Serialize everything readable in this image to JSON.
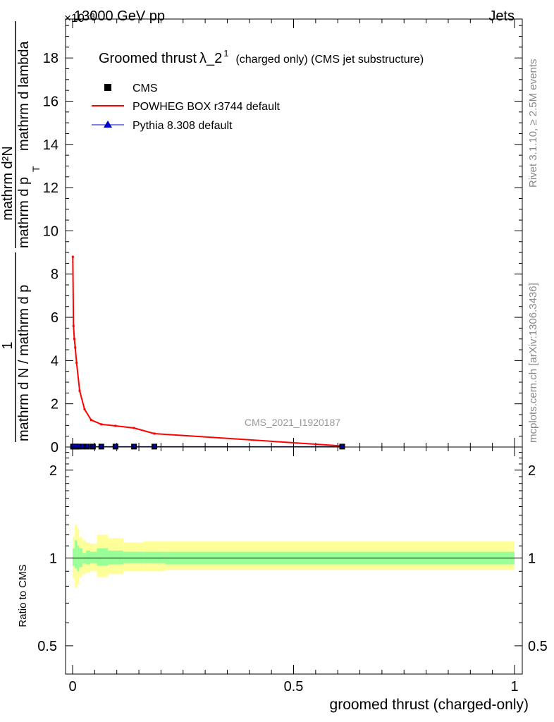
{
  "header": {
    "left": "13000 GeV pp",
    "right": "Jets",
    "scale": "×10⁻³"
  },
  "side_labels": {
    "rivet": "Rivet 3.1.10, ≥ 2.5M events",
    "mcplots": "mcplots.cern.ch [arXiv:1306.3436]"
  },
  "chart_data": [
    {
      "type": "line",
      "title_main": "Groomed thrust",
      "title_symbol": "λ_2",
      "title_sup": "1",
      "title_rest": "(charged only) (CMS jet substructure)",
      "analysis_tag": "CMS_2021_I1920187",
      "ylabel": {
        "numerator": "mathrm d²N",
        "denominator_line1": "mathrm d p",
        "denominator_line2": "mathrm d lambda",
        "prefix_numerator": "1",
        "prefix_denominator": "mathrm d N / mathrm d p",
        "sub": "T"
      },
      "xlim": [
        0,
        1
      ],
      "ylim": [
        0,
        19.8
      ],
      "y_scale_note": "values ×10⁻³",
      "y_ticks": [
        0,
        2,
        4,
        6,
        8,
        10,
        12,
        14,
        16,
        18
      ],
      "x_ticks": [
        0,
        0.5,
        1
      ],
      "legend_position": "top-left",
      "legend": [
        {
          "name": "CMS",
          "color": "#000000",
          "marker": "square"
        },
        {
          "name": "POWHEG BOX r3744 default",
          "color": "#ff0000",
          "marker": "line"
        },
        {
          "name": "Pythia 8.308 default",
          "color": "#0000cc",
          "marker": "triangle"
        }
      ],
      "series": [
        {
          "name": "POWHEG BOX r3744 default",
          "color": "#ff0000",
          "x": [
            0.0005,
            0.002,
            0.004,
            0.006,
            0.009,
            0.016,
            0.027,
            0.042,
            0.065,
            0.097,
            0.139,
            0.185,
            0.61
          ],
          "y": [
            8.8,
            5.6,
            5.0,
            4.6,
            3.9,
            2.6,
            1.75,
            1.25,
            1.05,
            0.98,
            0.88,
            0.62,
            0.05
          ]
        },
        {
          "name": "CMS",
          "color": "#000000",
          "x": [
            0.001,
            0.004,
            0.008,
            0.014,
            0.022,
            0.033,
            0.046,
            0.065,
            0.097,
            0.139,
            0.185,
            0.61
          ],
          "y": [
            0.02,
            0.02,
            0.02,
            0.02,
            0.02,
            0.02,
            0.02,
            0.02,
            0.02,
            0.02,
            0.02,
            0.02
          ]
        },
        {
          "name": "Pythia 8.308 default",
          "color": "#0000cc",
          "x": [
            0.001,
            0.004,
            0.008,
            0.014,
            0.022,
            0.033,
            0.046,
            0.065,
            0.097,
            0.139,
            0.185,
            0.61
          ],
          "y": [
            0.02,
            0.02,
            0.02,
            0.02,
            0.02,
            0.02,
            0.02,
            0.02,
            0.02,
            0.02,
            0.02,
            0.02
          ]
        }
      ]
    },
    {
      "type": "area",
      "ylabel": "Ratio to CMS",
      "xlabel": "groomed thrust (charged-only)",
      "xlim": [
        0,
        1
      ],
      "ylim": [
        0.4,
        2.4
      ],
      "y_scale": "log",
      "y_ticks": [
        0.5,
        1,
        2
      ],
      "x_ticks": [
        0,
        0.5,
        1
      ],
      "bands": {
        "edges": [
          0,
          0.005,
          0.01,
          0.015,
          0.022,
          0.03,
          0.04,
          0.055,
          0.08,
          0.115,
          0.16,
          0.21,
          1.0
        ],
        "stat": [
          [
            0.94,
            1.08
          ],
          [
            0.92,
            1.15
          ],
          [
            0.9,
            1.1
          ],
          [
            0.93,
            1.08
          ],
          [
            0.96,
            1.04
          ],
          [
            0.95,
            1.06
          ],
          [
            0.96,
            1.05
          ],
          [
            0.94,
            1.08
          ],
          [
            0.95,
            1.06
          ],
          [
            0.96,
            1.05
          ],
          [
            0.96,
            1.05
          ],
          [
            0.95,
            1.05
          ]
        ],
        "total": [
          [
            0.85,
            1.18
          ],
          [
            0.79,
            1.3
          ],
          [
            0.81,
            1.26
          ],
          [
            0.86,
            1.18
          ],
          [
            0.88,
            1.15
          ],
          [
            0.89,
            1.13
          ],
          [
            0.9,
            1.12
          ],
          [
            0.86,
            1.2
          ],
          [
            0.88,
            1.17
          ],
          [
            0.9,
            1.13
          ],
          [
            0.9,
            1.14
          ],
          [
            0.91,
            1.14
          ]
        ],
        "stat_color": "#99ff99",
        "total_color": "#ffff99"
      },
      "reference_line": 1
    }
  ]
}
